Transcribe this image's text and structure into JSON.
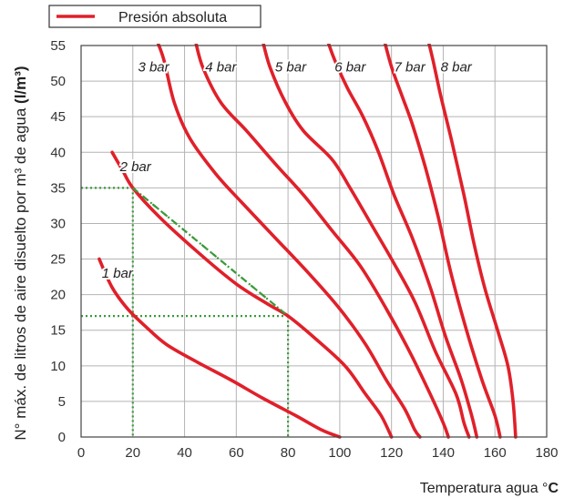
{
  "chart_data": {
    "type": "line",
    "title": "",
    "xlabel": "Temperatura agua °",
    "xlabel_unit": "C",
    "ylabel": "N° máx. de litros de aire disuelto por m³ de agua",
    "ylabel_unit": "(l/m³)",
    "xlim": [
      0,
      180
    ],
    "ylim": [
      0,
      55
    ],
    "x_ticks": [
      "0",
      "20",
      "40",
      "60",
      "80",
      "100",
      "120",
      "140",
      "160",
      "180"
    ],
    "y_ticks": [
      "0",
      "5",
      "10",
      "15",
      "20",
      "25",
      "30",
      "35",
      "40",
      "45",
      "50",
      "55"
    ],
    "grid": true,
    "legend": {
      "position": "top-left",
      "label": "Presión absoluta"
    },
    "colors": {
      "curve": "#e0202a",
      "guide": "#3a9a3a",
      "grid": "#b4b4b4",
      "axis": "#444444"
    },
    "series": [
      {
        "name": "1 bar",
        "points": [
          [
            7,
            25
          ],
          [
            12,
            21
          ],
          [
            18,
            18
          ],
          [
            25,
            15.5
          ],
          [
            33,
            13
          ],
          [
            45,
            10.5
          ],
          [
            58,
            8
          ],
          [
            70,
            5.5
          ],
          [
            83,
            3
          ],
          [
            93,
            1
          ],
          [
            100,
            0
          ]
        ]
      },
      {
        "name": "2 bar",
        "points": [
          [
            12,
            40
          ],
          [
            16,
            37.5
          ],
          [
            20,
            35
          ],
          [
            30,
            31
          ],
          [
            45,
            26
          ],
          [
            60,
            21.5
          ],
          [
            73,
            18.5
          ],
          [
            80,
            17
          ],
          [
            90,
            14
          ],
          [
            102,
            10
          ],
          [
            110,
            6
          ],
          [
            116,
            3
          ],
          [
            120,
            0
          ]
        ]
      },
      {
        "name": "3 bar",
        "points": [
          [
            29,
            56
          ],
          [
            32,
            53
          ],
          [
            36,
            47
          ],
          [
            42,
            42
          ],
          [
            52,
            37
          ],
          [
            62,
            33
          ],
          [
            75,
            28
          ],
          [
            88,
            23
          ],
          [
            100,
            18
          ],
          [
            110,
            13
          ],
          [
            118,
            8
          ],
          [
            125,
            4
          ],
          [
            129,
            1
          ],
          [
            131,
            0
          ]
        ]
      },
      {
        "name": "4 bar",
        "points": [
          [
            44,
            56
          ],
          [
            47,
            52
          ],
          [
            54,
            47
          ],
          [
            64,
            43
          ],
          [
            76,
            38
          ],
          [
            86,
            34
          ],
          [
            97,
            29
          ],
          [
            108,
            24
          ],
          [
            118,
            18
          ],
          [
            127,
            12
          ],
          [
            135,
            6
          ],
          [
            140,
            2
          ],
          [
            142,
            0
          ]
        ]
      },
      {
        "name": "5 bar",
        "points": [
          [
            70,
            56
          ],
          [
            73,
            52
          ],
          [
            79,
            47
          ],
          [
            86,
            43
          ],
          [
            97,
            39
          ],
          [
            104,
            35
          ],
          [
            112,
            30
          ],
          [
            120,
            25
          ],
          [
            129,
            19
          ],
          [
            137,
            12
          ],
          [
            145,
            6
          ],
          [
            148,
            2
          ],
          [
            150,
            0
          ]
        ]
      },
      {
        "name": "6 bar",
        "points": [
          [
            95,
            56
          ],
          [
            98,
            53
          ],
          [
            103,
            49
          ],
          [
            109,
            45
          ],
          [
            115,
            40
          ],
          [
            121,
            34
          ],
          [
            128,
            28
          ],
          [
            135,
            21
          ],
          [
            141,
            14
          ],
          [
            147,
            8
          ],
          [
            151,
            3
          ],
          [
            153,
            0
          ]
        ]
      },
      {
        "name": "7 bar",
        "points": [
          [
            117,
            56
          ],
          [
            120,
            52
          ],
          [
            124,
            48
          ],
          [
            128,
            44
          ],
          [
            133,
            38
          ],
          [
            138,
            31
          ],
          [
            143,
            23
          ],
          [
            149,
            15
          ],
          [
            155,
            8
          ],
          [
            160,
            3
          ],
          [
            162,
            0
          ]
        ]
      },
      {
        "name": "8 bar",
        "points": [
          [
            134,
            56
          ],
          [
            136,
            53
          ],
          [
            139,
            48
          ],
          [
            143,
            42
          ],
          [
            148,
            34
          ],
          [
            152,
            27
          ],
          [
            156,
            21
          ],
          [
            161,
            15
          ],
          [
            165,
            10
          ],
          [
            167,
            5
          ],
          [
            168,
            0
          ]
        ]
      }
    ],
    "curve_labels": [
      {
        "text": "1 bar",
        "x": 8,
        "y": 23
      },
      {
        "text": "2 bar",
        "x": 15,
        "y": 38
      },
      {
        "text": "3 bar",
        "x": 22,
        "y": 52
      },
      {
        "text": "4 bar",
        "x": 48,
        "y": 52
      },
      {
        "text": "5 bar",
        "x": 75,
        "y": 52
      },
      {
        "text": "6 bar",
        "x": 98,
        "y": 52
      },
      {
        "text": "7 bar",
        "x": 121,
        "y": 52
      },
      {
        "text": "8 bar",
        "x": 139,
        "y": 52
      }
    ],
    "guides": [
      {
        "segments": [
          [
            [
              0,
              35
            ],
            [
              20,
              35
            ]
          ],
          [
            [
              20,
              35
            ],
            [
              20,
              0
            ]
          ],
          [
            [
              20,
              35
            ],
            [
              80,
              17
            ]
          ],
          [
            [
              0,
              17
            ],
            [
              80,
              17
            ]
          ],
          [
            [
              80,
              17
            ],
            [
              80,
              0
            ]
          ]
        ]
      }
    ]
  }
}
